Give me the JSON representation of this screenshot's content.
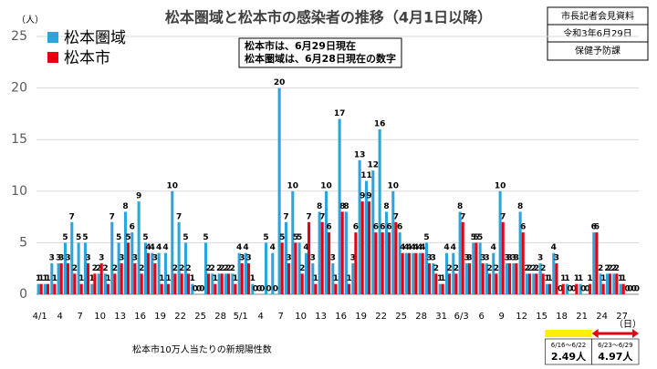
{
  "chart_data": {
    "type": "bar",
    "title": "松本圏域と松本市の感染者の推移（4月1日以降）",
    "y_label": "（人）",
    "x_label": "（日）",
    "note": [
      "松本市は、6月29日現在",
      "松本圏域は、6月28日現在の数字"
    ],
    "source": [
      "市長記者会見資料",
      "令和3年6月29日",
      "保健予防課"
    ],
    "footer": "松本市10万人当たりの新規陽性数",
    "periods": [
      {
        "range": "6/16～6/22",
        "value": "2.49人",
        "color": "#ffef00"
      },
      {
        "range": "6/23～6/29",
        "value": "4.97人",
        "color": "#e60012"
      }
    ],
    "categories": [
      "4/1",
      null,
      null,
      "4",
      null,
      null,
      "7",
      null,
      null,
      "10",
      null,
      null,
      "13",
      null,
      null,
      "16",
      null,
      null,
      "19",
      null,
      null,
      "22",
      null,
      null,
      "25",
      null,
      null,
      "28",
      null,
      null,
      "5/1",
      null,
      null,
      "4",
      null,
      null,
      "7",
      null,
      null,
      "10",
      null,
      null,
      "13",
      null,
      null,
      "16",
      null,
      null,
      "19",
      null,
      null,
      "22",
      null,
      null,
      "25",
      null,
      null,
      "28",
      null,
      null,
      "31",
      null,
      null,
      "6/3",
      null,
      null,
      "6",
      null,
      null,
      "9",
      null,
      null,
      "12",
      null,
      null,
      "15",
      null,
      null,
      "18",
      null,
      null,
      "21",
      null,
      null,
      "24",
      null,
      null,
      "27",
      null,
      null
    ],
    "series": [
      {
        "name": "松本圏域",
        "color": "#2aa6dc",
        "values": [
          1,
          1,
          3,
          3,
          5,
          7,
          5,
          5,
          1,
          2,
          2,
          7,
          5,
          8,
          6,
          9,
          5,
          4,
          4,
          4,
          10,
          7,
          5,
          1,
          0,
          5,
          2,
          2,
          2,
          2,
          4,
          4,
          1,
          0,
          5,
          4,
          20,
          7,
          10,
          5,
          4,
          3,
          8,
          10,
          3,
          17,
          8,
          3,
          13,
          11,
          12,
          16,
          8,
          10,
          6,
          4,
          4,
          4,
          5,
          3,
          1,
          4,
          4,
          8,
          3,
          5,
          5,
          3,
          4,
          10,
          3,
          3,
          8,
          2,
          2,
          3,
          1,
          4,
          0,
          1,
          0,
          1,
          0,
          6,
          2,
          2,
          2,
          1,
          0,
          0
        ]
      },
      {
        "name": "松本市",
        "color": "#e60012",
        "values": [
          1,
          1,
          1,
          3,
          3,
          2,
          1,
          3,
          2,
          3,
          1,
          2,
          3,
          5,
          3,
          2,
          4,
          3,
          1,
          1,
          2,
          2,
          2,
          0,
          0,
          2,
          1,
          2,
          2,
          1,
          3,
          3,
          0,
          0,
          0,
          0,
          5,
          3,
          5,
          2,
          7,
          1,
          7,
          6,
          1,
          8,
          1,
          6,
          9,
          9,
          6,
          6,
          6,
          7,
          4,
          4,
          4,
          4,
          3,
          2,
          1,
          2,
          2,
          7,
          3,
          5,
          3,
          2,
          2,
          7,
          3,
          3,
          6,
          2,
          2,
          2,
          1,
          3,
          1,
          0,
          1,
          0,
          1,
          6,
          1,
          2,
          2,
          1,
          0,
          0
        ]
      }
    ],
    "ylim": [
      0,
      25
    ],
    "yticks": [
      0,
      5,
      10,
      15,
      20,
      25
    ],
    "grid": true,
    "legend": "top-left"
  }
}
